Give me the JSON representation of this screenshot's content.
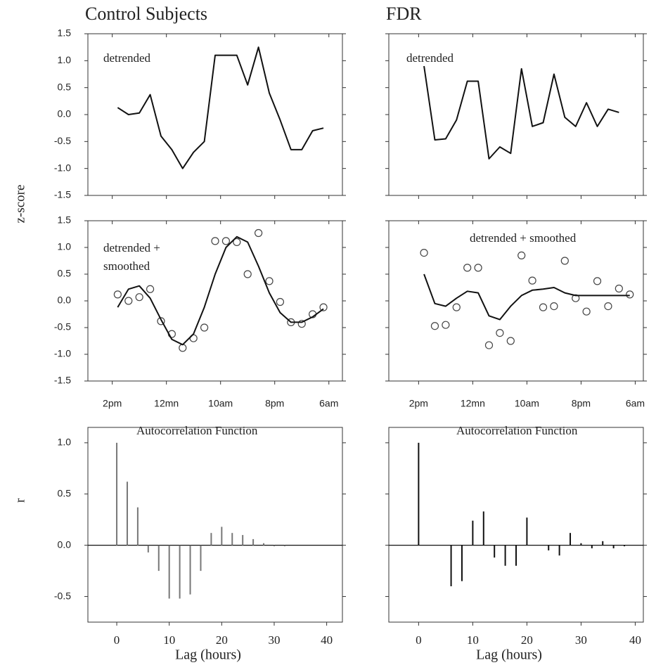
{
  "chart_data": [
    {
      "type": "line",
      "title": "Control Subjects",
      "ylabel": "z-score",
      "annotation": [
        "detrended"
      ],
      "x": [
        1,
        3,
        5,
        7,
        9,
        11,
        13,
        15,
        17,
        19,
        21,
        23,
        25,
        27,
        29,
        31,
        33,
        35,
        37,
        39
      ],
      "series": [
        {
          "style": "line",
          "color": "#111111",
          "values": [
            0.13,
            0.0,
            0.03,
            0.37,
            -0.4,
            -0.65,
            -1.0,
            -0.7,
            -0.5,
            1.1,
            1.1,
            1.1,
            0.55,
            1.25,
            0.4,
            -0.1,
            -0.65,
            -0.65,
            -0.3,
            -0.25
          ]
        }
      ],
      "xlim": [
        -4.5,
        42.5
      ],
      "xticks": [
        0,
        10,
        20,
        30,
        40
      ],
      "show_xtick_labels": false,
      "ylim": [
        -1.5,
        1.5
      ],
      "yticks": [
        {
          "value": 1.5,
          "label": "1.5"
        },
        {
          "value": 1.0,
          "label": "1.0"
        },
        {
          "value": 0.5,
          "label": "0.5"
        },
        {
          "value": 0.0,
          "label": "0.0"
        },
        {
          "value": -0.5,
          "label": "-0.5"
        },
        {
          "value": -1.0,
          "label": "-1.0"
        },
        {
          "value": -1.5,
          "label": "-1.5"
        }
      ]
    },
    {
      "type": "line",
      "annotation": [
        "detrended +",
        "smoothed"
      ],
      "x": [
        1,
        3,
        5,
        7,
        9,
        11,
        13,
        15,
        17,
        19,
        21,
        23,
        25,
        27,
        29,
        31,
        33,
        35,
        37,
        39
      ],
      "series": [
        {
          "style": "markers",
          "color": "#444444",
          "values": [
            0.12,
            0.0,
            0.07,
            0.22,
            -0.38,
            -0.62,
            -0.88,
            -0.7,
            -0.5,
            1.12,
            1.12,
            1.1,
            0.5,
            1.27,
            0.37,
            -0.02,
            -0.4,
            -0.43,
            -0.25,
            -0.12
          ]
        },
        {
          "style": "line",
          "color": "#111111",
          "values": [
            -0.12,
            0.22,
            0.28,
            0.05,
            -0.35,
            -0.72,
            -0.82,
            -0.62,
            -0.12,
            0.5,
            1.0,
            1.2,
            1.1,
            0.65,
            0.15,
            -0.22,
            -0.4,
            -0.4,
            -0.3,
            -0.15
          ]
        }
      ],
      "xlim": [
        -4.5,
        42.5
      ],
      "xticks": [
        {
          "value": 0,
          "label": "2pm"
        },
        {
          "value": 10,
          "label": "12mn"
        },
        {
          "value": 20,
          "label": "10am"
        },
        {
          "value": 30,
          "label": "8pm"
        },
        {
          "value": 40,
          "label": "6am"
        }
      ],
      "ylim": [
        -1.5,
        1.5
      ],
      "yticks": [
        {
          "value": 1.5,
          "label": "1.5"
        },
        {
          "value": 1.0,
          "label": "1.0"
        },
        {
          "value": 0.5,
          "label": "0.5"
        },
        {
          "value": 0.0,
          "label": "0.0"
        },
        {
          "value": -0.5,
          "label": "-0.5"
        },
        {
          "value": -1.0,
          "label": "-1.0"
        },
        {
          "value": -1.5,
          "label": "-1.5"
        }
      ]
    },
    {
      "type": "stem",
      "ylabel": "r",
      "xlabel": "Lag (hours)",
      "annotation": [
        "Autocorrelation Function"
      ],
      "color": "#777777",
      "x": [
        0,
        2,
        4,
        6,
        8,
        10,
        12,
        14,
        16,
        18,
        20,
        22,
        24,
        26,
        28,
        30,
        32
      ],
      "values": [
        1.0,
        0.62,
        0.37,
        -0.07,
        -0.25,
        -0.52,
        -0.52,
        -0.48,
        -0.25,
        0.12,
        0.18,
        0.12,
        0.1,
        0.06,
        0.02,
        -0.01,
        -0.01
      ],
      "xlim": [
        -5.5,
        43
      ],
      "xticks": [
        0,
        10,
        20,
        30,
        40
      ],
      "ylim": [
        -0.75,
        1.15
      ],
      "yticks": [
        {
          "value": 1.0,
          "label": "1.0"
        },
        {
          "value": 0.5,
          "label": "0.5"
        },
        {
          "value": 0.0,
          "label": "0.0"
        },
        {
          "value": -0.5,
          "label": "-0.5"
        }
      ]
    },
    {
      "type": "line",
      "title": "FDR",
      "annotation": [
        "detrended"
      ],
      "x": [
        1,
        3,
        5,
        7,
        9,
        11,
        13,
        15,
        17,
        19,
        21,
        23,
        25,
        27,
        29,
        31,
        33,
        35,
        37
      ],
      "series": [
        {
          "style": "line",
          "color": "#111111",
          "values": [
            0.9,
            -0.47,
            -0.45,
            -0.1,
            0.62,
            0.62,
            -0.82,
            -0.6,
            -0.72,
            0.85,
            -0.22,
            -0.15,
            0.75,
            -0.05,
            -0.22,
            0.22,
            -0.22,
            0.1,
            0.04
          ]
        }
      ],
      "xlim": [
        -5.5,
        41.5
      ],
      "xticks": [
        0,
        10,
        20,
        30,
        40
      ],
      "show_xtick_labels": false,
      "ylim": [
        -1.5,
        1.5
      ],
      "yticks": [
        1.5,
        1.0,
        0.5,
        0.0,
        -0.5,
        -1.0,
        -1.5
      ],
      "show_ytick_labels": false
    },
    {
      "type": "line",
      "annotation": [
        "detrended + smoothed"
      ],
      "x": [
        1,
        3,
        5,
        7,
        9,
        11,
        13,
        15,
        17,
        19,
        21,
        23,
        25,
        27,
        29,
        31,
        33,
        35,
        37,
        39
      ],
      "series": [
        {
          "style": "markers",
          "color": "#444444",
          "values": [
            0.9,
            -0.47,
            -0.45,
            -0.12,
            0.62,
            0.62,
            -0.83,
            -0.6,
            -0.75,
            0.85,
            0.38,
            -0.12,
            -0.1,
            0.75,
            0.05,
            -0.2,
            0.37,
            -0.1,
            0.23,
            0.12
          ]
        },
        {
          "style": "line",
          "color": "#111111",
          "values": [
            0.5,
            -0.05,
            -0.1,
            0.05,
            0.18,
            0.15,
            -0.28,
            -0.35,
            -0.1,
            0.1,
            0.2,
            0.22,
            0.25,
            0.15,
            0.1,
            0.1,
            0.1,
            0.1,
            0.1,
            0.1
          ]
        }
      ],
      "xlim": [
        -5.5,
        41.5
      ],
      "xticks": [
        {
          "value": 0,
          "label": "2pm"
        },
        {
          "value": 10,
          "label": "12mn"
        },
        {
          "value": 20,
          "label": "10am"
        },
        {
          "value": 30,
          "label": "8pm"
        },
        {
          "value": 40,
          "label": "6am"
        }
      ],
      "ylim": [
        -1.5,
        1.5
      ],
      "yticks": [
        1.5,
        1.0,
        0.5,
        0.0,
        -0.5,
        -1.0,
        -1.5
      ],
      "show_ytick_labels": false
    },
    {
      "type": "stem",
      "xlabel": "Lag (hours)",
      "annotation": [
        "Autocorrelation Function"
      ],
      "color": "#111111",
      "x": [
        0,
        6,
        8,
        10,
        12,
        14,
        16,
        18,
        20,
        24,
        26,
        28,
        30,
        32,
        34,
        36,
        38
      ],
      "values": [
        1.0,
        -0.4,
        -0.35,
        0.24,
        0.33,
        -0.12,
        -0.2,
        -0.2,
        0.27,
        -0.05,
        -0.1,
        0.12,
        0.02,
        -0.03,
        0.04,
        -0.03,
        -0.01
      ],
      "xlim": [
        -5.5,
        41.5
      ],
      "xticks": [
        0,
        10,
        20,
        30,
        40
      ],
      "ylim": [
        -0.75,
        1.15
      ],
      "yticks": [
        1.0,
        0.5,
        0.0,
        -0.5
      ],
      "show_ytick_labels": false
    }
  ]
}
